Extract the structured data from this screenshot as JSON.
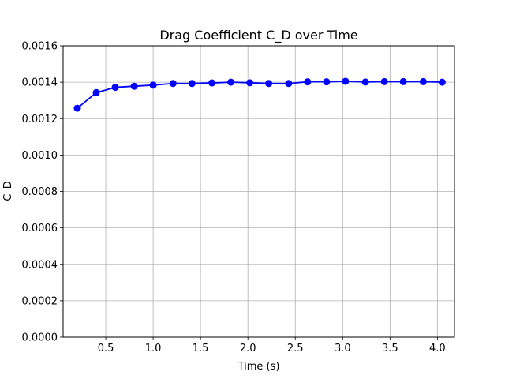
{
  "chart_data": {
    "type": "line",
    "title": "Drag Coefficient C_D over Time",
    "xlabel": "Time (s)",
    "ylabel": "C_D",
    "xlim": [
      0.05,
      4.18
    ],
    "ylim": [
      0,
      0.0016
    ],
    "grid": true,
    "x_ticks": [
      0.5,
      1.0,
      1.5,
      2.0,
      2.5,
      3.0,
      3.5,
      4.0
    ],
    "x_tick_labels": [
      "0.5",
      "1.0",
      "1.5",
      "2.0",
      "2.5",
      "3.0",
      "3.5",
      "4.0"
    ],
    "y_ticks": [
      0,
      0.0002,
      0.0004,
      0.0006,
      0.0008,
      0.001,
      0.0012,
      0.0014,
      0.0016
    ],
    "y_tick_labels": [
      "0.0000",
      "0.0002",
      "0.0004",
      "0.0006",
      "0.0008",
      "0.0010",
      "0.0012",
      "0.0014",
      "0.0016"
    ],
    "series": [
      {
        "color": "#0000ff",
        "marker": "circle",
        "x": [
          0.2,
          0.4,
          0.6,
          0.8,
          1.0,
          1.21,
          1.41,
          1.62,
          1.82,
          2.02,
          2.22,
          2.43,
          2.63,
          2.83,
          3.03,
          3.24,
          3.44,
          3.64,
          3.85,
          4.05
        ],
        "y": [
          0.001257,
          0.001343,
          0.001372,
          0.001378,
          0.001384,
          0.001393,
          0.001393,
          0.001396,
          0.0014,
          0.001397,
          0.001393,
          0.001393,
          0.001402,
          0.001402,
          0.001405,
          0.001401,
          0.001403,
          0.001403,
          0.001403,
          0.0014
        ]
      }
    ]
  }
}
